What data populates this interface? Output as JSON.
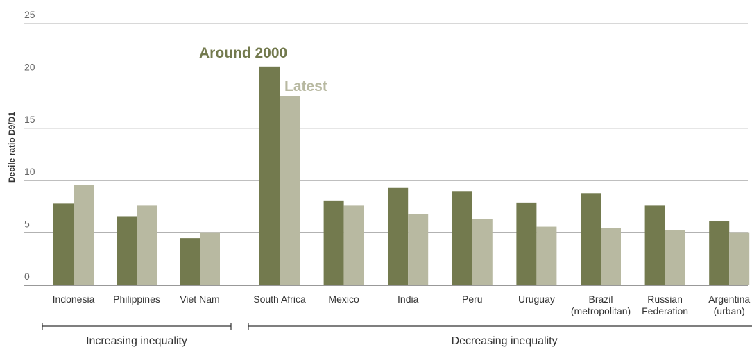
{
  "chart_data": {
    "type": "bar",
    "ylabel": "Decile ratio D9/D1",
    "ylim": [
      0,
      25
    ],
    "yticks": [
      "0",
      "5",
      "10",
      "15",
      "20",
      "25"
    ],
    "grid": true,
    "categories": [
      [
        "Indonesia"
      ],
      [
        "Philippines"
      ],
      [
        "Viet Nam"
      ],
      [
        "South Africa"
      ],
      [
        "Mexico"
      ],
      [
        "India"
      ],
      [
        "Peru"
      ],
      [
        "Uruguay"
      ],
      [
        "Brazil",
        "(metropolitan)"
      ],
      [
        "Russian",
        "Federation"
      ],
      [
        "Argentina",
        "(urban)"
      ]
    ],
    "series": [
      {
        "name": "Around 2000",
        "color": "#737a4e",
        "values": [
          7.8,
          6.6,
          4.5,
          20.9,
          8.1,
          9.3,
          9.0,
          7.9,
          8.8,
          7.6,
          6.1
        ]
      },
      {
        "name": "Latest",
        "color": "#b8b9a1",
        "values": [
          9.6,
          7.6,
          5.0,
          18.1,
          7.6,
          6.8,
          6.3,
          5.6,
          5.5,
          5.3,
          5.0
        ]
      }
    ],
    "groups": [
      {
        "label": "Increasing inequality",
        "from": 0,
        "to": 2
      },
      {
        "label": "Decreasing inequality",
        "from": 3,
        "to": 10
      }
    ],
    "legend_placement": "on-chart, above South Africa"
  },
  "colors": {
    "grid": "#999999",
    "axis": "#333333"
  }
}
